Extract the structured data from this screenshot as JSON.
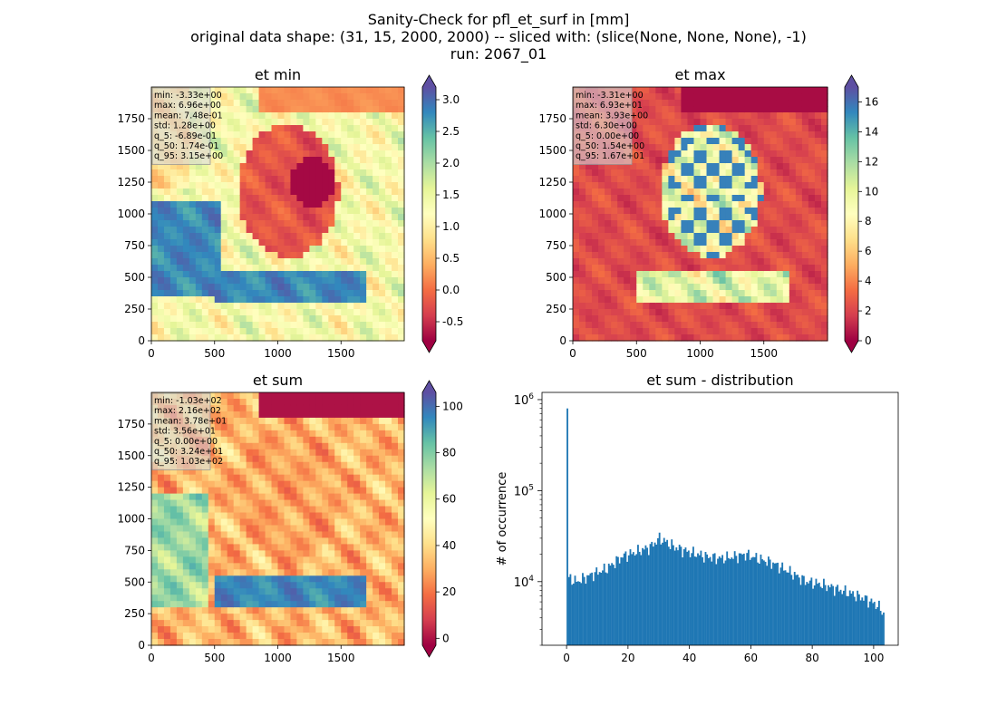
{
  "figure": {
    "title_lines": [
      "Sanity-Check for pfl_et_surf in [mm]",
      "original data shape: (31, 15, 2000, 2000) -- sliced with: (slice(None, None, None), -1)",
      "run: 2067_01"
    ]
  },
  "colors": {
    "colormap": [
      "#9e0142",
      "#d53e4f",
      "#f46d43",
      "#fdae61",
      "#fee08b",
      "#ffffbf",
      "#e6f598",
      "#abdda4",
      "#66c2a5",
      "#3288bd",
      "#5e4fa2"
    ],
    "histogram_bar": "#1f77b4"
  },
  "chart_data": [
    {
      "type": "heatmap",
      "title": "et min",
      "x_ticks": [
        "0",
        "500",
        "1000",
        "1500"
      ],
      "y_ticks": [
        "0",
        "250",
        "500",
        "750",
        "1000",
        "1250",
        "1500",
        "1750"
      ],
      "colorbar": {
        "min": -0.8,
        "max": 3.2,
        "ticks": [
          "-0.5",
          "0.0",
          "0.5",
          "1.0",
          "1.5",
          "2.0",
          "2.5",
          "3.0"
        ],
        "extend": "both"
      },
      "stats": [
        "min: -3.33e+00",
        "max: 6.96e+00",
        "mean: 7.48e-01",
        "std: 1.28e+00",
        "q_5: -6.89e-01",
        "q_50: 1.74e-01",
        "q_95: 3.15e+00"
      ]
    },
    {
      "type": "heatmap",
      "title": "et max",
      "x_ticks": [
        "0",
        "500",
        "1000",
        "1500"
      ],
      "y_ticks": [
        "0",
        "250",
        "500",
        "750",
        "1000",
        "1250",
        "1500",
        "1750"
      ],
      "colorbar": {
        "min": 0,
        "max": 17,
        "ticks": [
          "0",
          "2",
          "4",
          "6",
          "8",
          "10",
          "12",
          "14",
          "16"
        ],
        "extend": "both"
      },
      "stats": [
        "min: -3.31e+00",
        "max: 6.93e+01",
        "mean: 3.93e+00",
        "std: 6.30e+00",
        "q_5: 0.00e+00",
        "q_50: 1.54e+00",
        "q_95: 1.67e+01"
      ]
    },
    {
      "type": "heatmap",
      "title": "et sum",
      "x_ticks": [
        "0",
        "500",
        "1000",
        "1500"
      ],
      "y_ticks": [
        "0",
        "250",
        "500",
        "750",
        "1000",
        "1250",
        "1500",
        "1750"
      ],
      "colorbar": {
        "min": -3,
        "max": 106,
        "ticks": [
          "0",
          "20",
          "40",
          "60",
          "80",
          "100"
        ],
        "extend": "both"
      },
      "stats": [
        "min: -1.03e+02",
        "max: 2.16e+02",
        "mean: 3.78e+01",
        "std: 3.56e+01",
        "q_5: 0.00e+00",
        "q_50: 3.24e+01",
        "q_95: 1.03e+02"
      ]
    },
    {
      "type": "bar",
      "title": "et sum - distribution",
      "ylabel": "# of occurrence",
      "yscale": "log",
      "xlim": [
        -8,
        108
      ],
      "ylim": [
        2000,
        1200000
      ],
      "x_ticks": [
        "0",
        "20",
        "40",
        "60",
        "80",
        "100"
      ],
      "x_tick_values": [
        0,
        20,
        40,
        60,
        80,
        100
      ],
      "y_ticks": [
        {
          "base": "10",
          "exp": "4",
          "value": 10000
        },
        {
          "base": "10",
          "exp": "5",
          "value": 100000
        },
        {
          "base": "10",
          "exp": "6",
          "value": 1000000
        }
      ],
      "bins": {
        "start": 0,
        "width": 0.5,
        "points": [
          [
            0,
            800000
          ],
          [
            0.5,
            11000
          ],
          [
            3,
            10000
          ],
          [
            8,
            12000
          ],
          [
            13,
            14000
          ],
          [
            18,
            19000
          ],
          [
            22,
            21000
          ],
          [
            27,
            24000
          ],
          [
            30,
            30000
          ],
          [
            35,
            24000
          ],
          [
            40,
            21000
          ],
          [
            45,
            19000
          ],
          [
            50,
            18000
          ],
          [
            55,
            19000
          ],
          [
            58,
            20000
          ],
          [
            62,
            18000
          ],
          [
            67,
            16000
          ],
          [
            72,
            13000
          ],
          [
            78,
            10000
          ],
          [
            82,
            9500
          ],
          [
            87,
            8500
          ],
          [
            92,
            7500
          ],
          [
            97,
            6500
          ],
          [
            101,
            5500
          ],
          [
            103,
            4500
          ]
        ]
      }
    }
  ]
}
